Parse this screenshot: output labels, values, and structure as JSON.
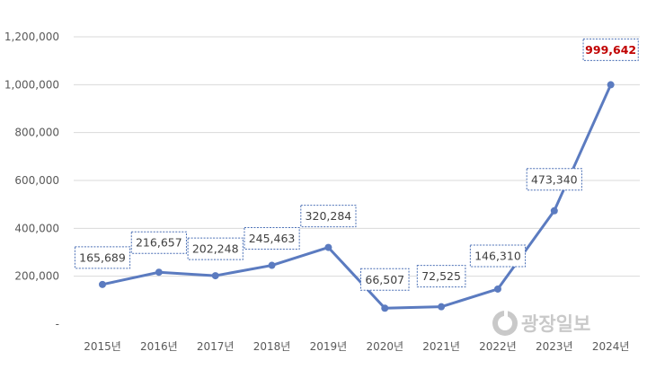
{
  "chart_data": {
    "type": "line",
    "categories": [
      "2015년",
      "2016년",
      "2017년",
      "2018년",
      "2019년",
      "2020년",
      "2021년",
      "2022년",
      "2023년",
      "2024년"
    ],
    "values": [
      165689,
      216657,
      202248,
      245463,
      320284,
      66507,
      72525,
      146310,
      473340,
      999642
    ],
    "data_labels": [
      "165,689",
      "216,657",
      "202,248",
      "245,463",
      "320,284",
      "66,507",
      "72,525",
      "146,310",
      "473,340",
      "999,642"
    ],
    "highlight_index": 9,
    "y_ticks": [
      "-",
      "200,000",
      "400,000",
      "600,000",
      "800,000",
      "1,000,000",
      "1,200,000"
    ],
    "ylim": [
      0,
      1200000
    ],
    "grid": true,
    "title": "",
    "xlabel": "",
    "ylabel": "",
    "colors": {
      "line": "#5b7bc0",
      "highlight_label": "#c00000",
      "label_border": "#4a6fb5"
    }
  },
  "watermark": {
    "text": "광장일보",
    "icon": "logo-circle-icon"
  }
}
